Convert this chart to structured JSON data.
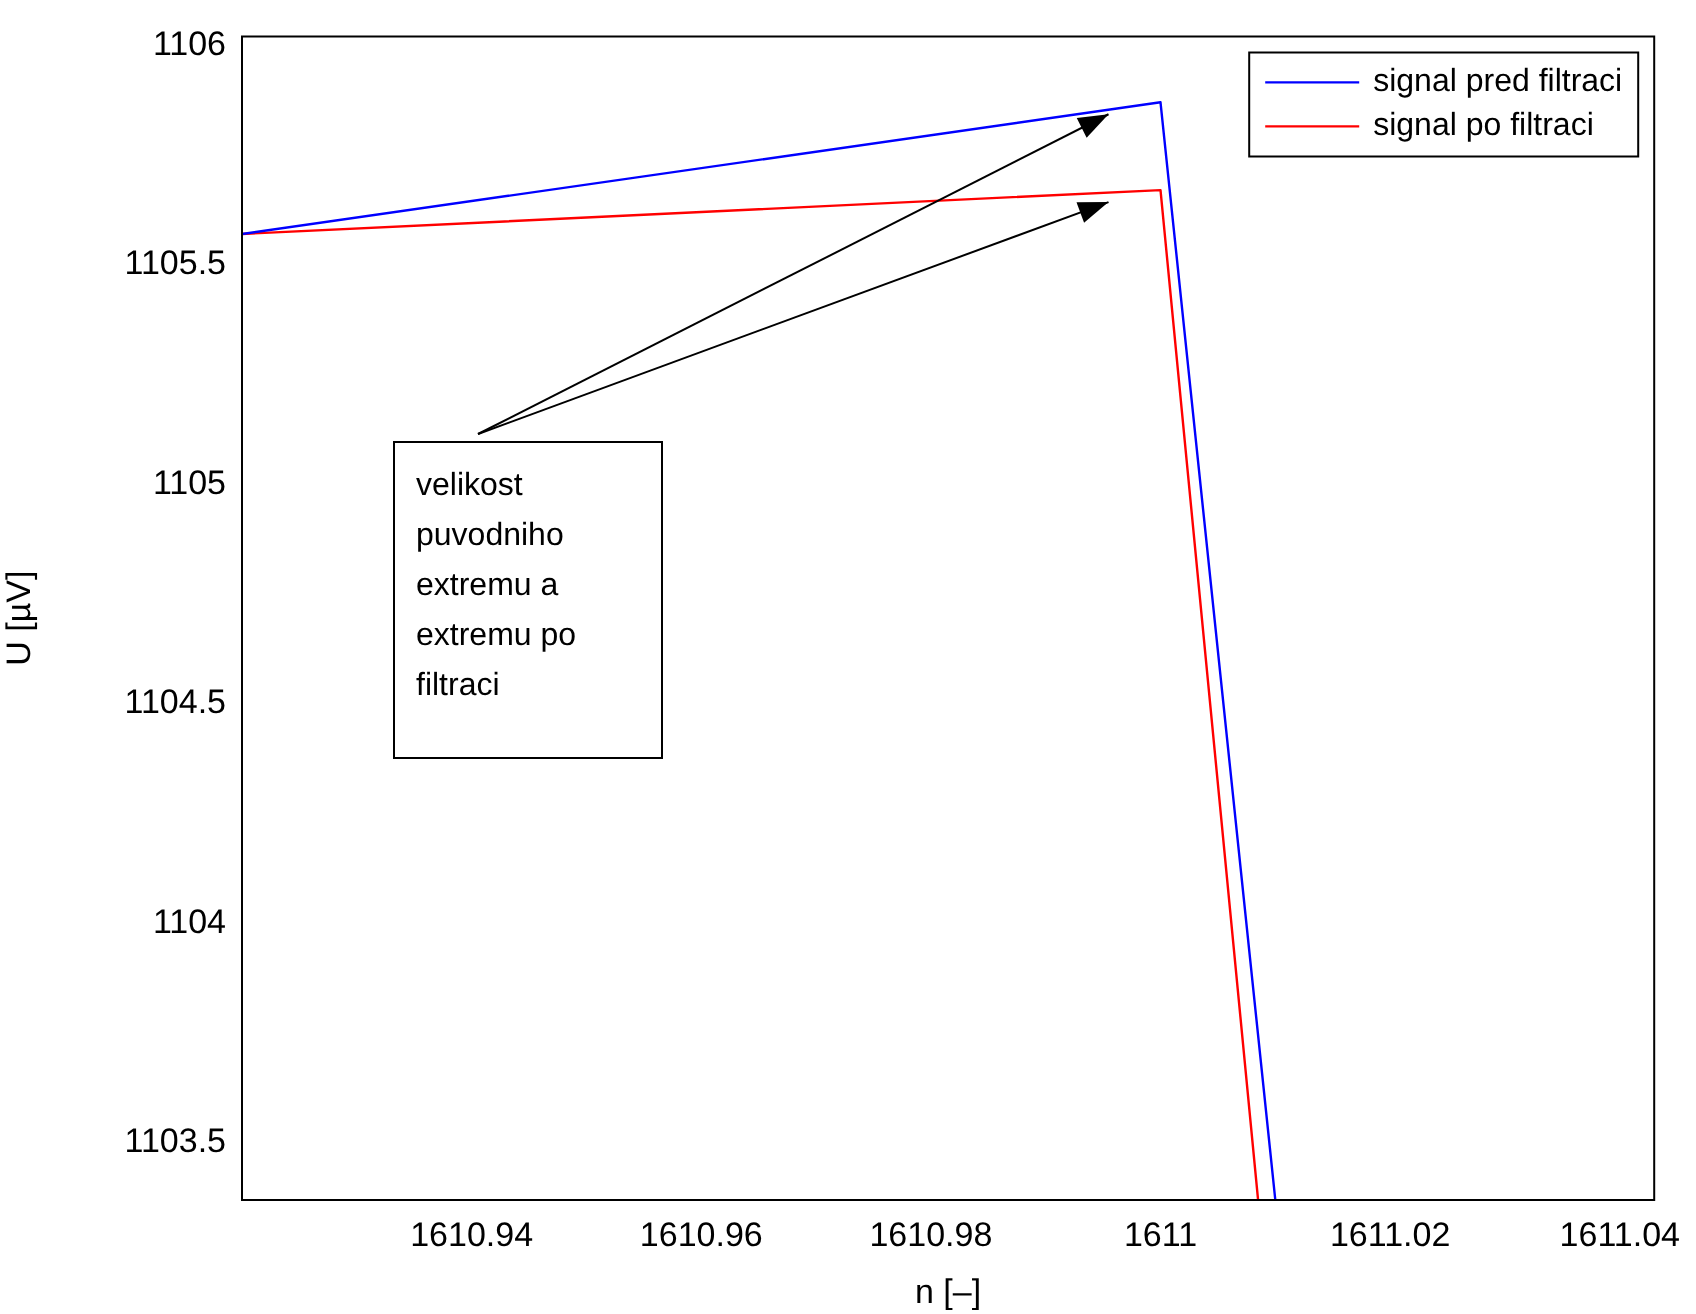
{
  "chart_data": {
    "type": "line",
    "xlabel": "n [–]",
    "ylabel": "U [µV]",
    "xlim": [
      1610.92,
      1611.043
    ],
    "ylim": [
      1103.37,
      1106.02
    ],
    "xticks": [
      1610.94,
      1610.96,
      1610.98,
      1611,
      1611.02,
      1611.04
    ],
    "yticks": [
      1103.5,
      1104,
      1104.5,
      1105,
      1105.5,
      1106
    ],
    "series": [
      {
        "name": "signal pred filtraci",
        "color": "#0000ff",
        "x": [
          1610.92,
          1611,
          1611.01
        ],
        "values": [
          1105.57,
          1105.87,
          1103.37
        ]
      },
      {
        "name": "signal po filtraci",
        "color": "#ff0000",
        "x": [
          1610.92,
          1611,
          1611.0085
        ],
        "values": [
          1105.57,
          1105.67,
          1103.37
        ]
      }
    ],
    "annotations": [
      "velikost puvodniho extremu a extremu po filtraci"
    ],
    "legend": "top right",
    "grid": false,
    "marker": "none",
    "line_style": "solid"
  }
}
